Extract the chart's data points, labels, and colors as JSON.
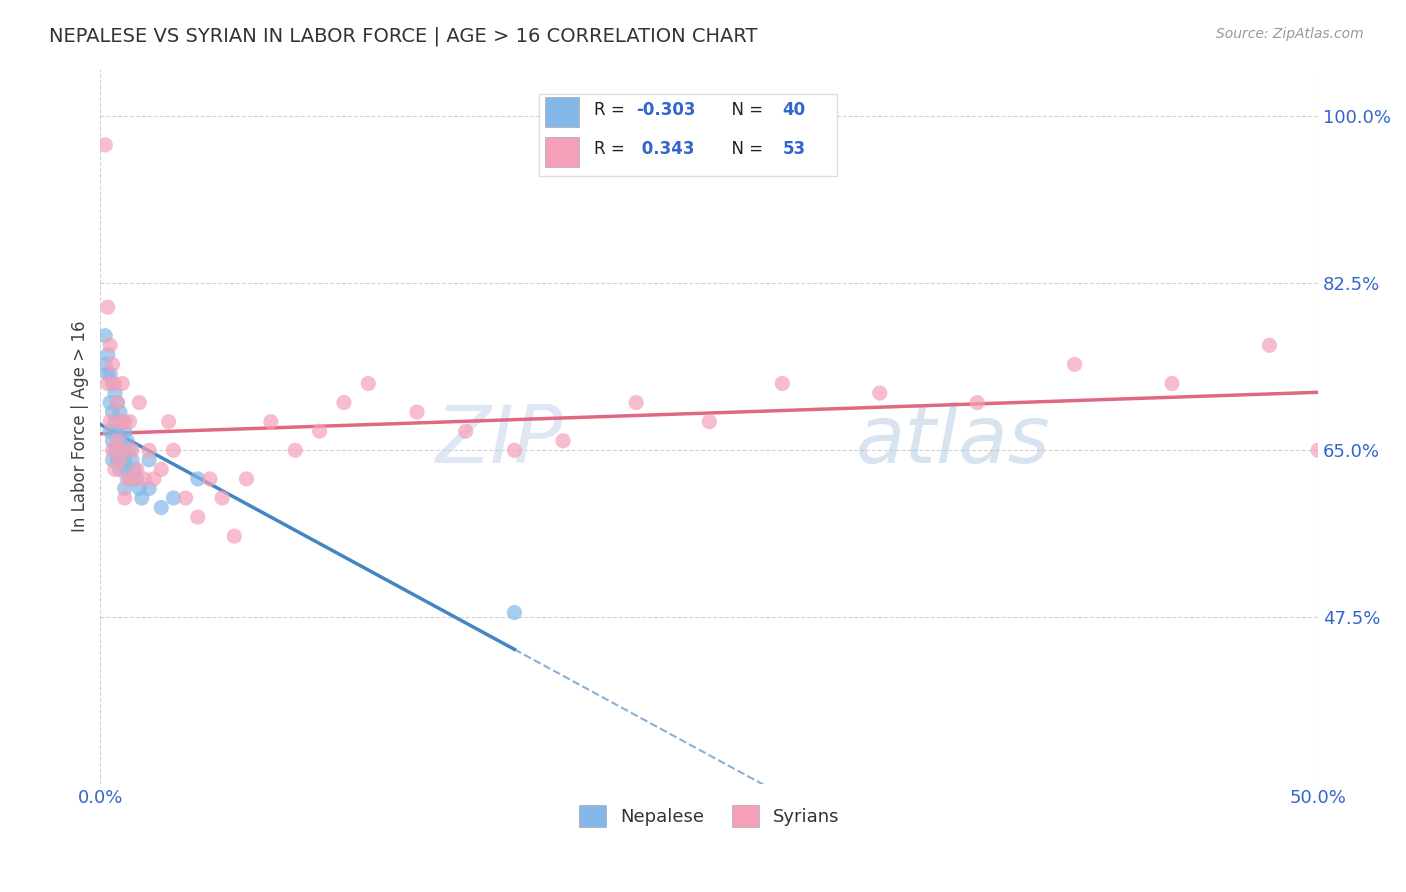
{
  "title": "NEPALESE VS SYRIAN IN LABOR FORCE | AGE > 16 CORRELATION CHART",
  "source_text": "Source: ZipAtlas.com",
  "ylabel": "In Labor Force | Age > 16",
  "xlim": [
    0.0,
    0.5
  ],
  "ylim": [
    0.3,
    1.05
  ],
  "yticks": [
    0.475,
    0.65,
    0.825,
    1.0
  ],
  "ytick_labels": [
    "47.5%",
    "65.0%",
    "82.5%",
    "100.0%"
  ],
  "xticks": [
    0.0,
    0.5
  ],
  "xtick_labels": [
    "0.0%",
    "50.0%"
  ],
  "nepalese_color": "#85b8e8",
  "syrian_color": "#f4a0b8",
  "nepalese_line_color": "#3a7ec0",
  "syrian_line_color": "#e0607a",
  "background_color": "#ffffff",
  "tick_color": "#3366cc",
  "nepalese_x": [
    0.002,
    0.002,
    0.003,
    0.003,
    0.004,
    0.004,
    0.004,
    0.005,
    0.005,
    0.005,
    0.005,
    0.006,
    0.006,
    0.006,
    0.007,
    0.007,
    0.007,
    0.008,
    0.008,
    0.008,
    0.009,
    0.009,
    0.01,
    0.01,
    0.01,
    0.011,
    0.011,
    0.012,
    0.012,
    0.013,
    0.014,
    0.015,
    0.016,
    0.017,
    0.02,
    0.02,
    0.025,
    0.03,
    0.04,
    0.17
  ],
  "nepalese_y": [
    0.77,
    0.74,
    0.75,
    0.73,
    0.73,
    0.7,
    0.67,
    0.72,
    0.69,
    0.66,
    0.64,
    0.71,
    0.68,
    0.65,
    0.7,
    0.67,
    0.64,
    0.69,
    0.66,
    0.63,
    0.68,
    0.65,
    0.67,
    0.64,
    0.61,
    0.66,
    0.63,
    0.65,
    0.62,
    0.64,
    0.63,
    0.62,
    0.61,
    0.6,
    0.64,
    0.61,
    0.59,
    0.6,
    0.62,
    0.48
  ],
  "syrian_x": [
    0.002,
    0.003,
    0.003,
    0.004,
    0.004,
    0.005,
    0.005,
    0.006,
    0.006,
    0.007,
    0.007,
    0.008,
    0.008,
    0.009,
    0.009,
    0.01,
    0.01,
    0.011,
    0.012,
    0.013,
    0.014,
    0.015,
    0.016,
    0.018,
    0.02,
    0.022,
    0.025,
    0.028,
    0.03,
    0.035,
    0.04,
    0.045,
    0.05,
    0.055,
    0.06,
    0.07,
    0.08,
    0.09,
    0.1,
    0.11,
    0.13,
    0.15,
    0.17,
    0.19,
    0.22,
    0.25,
    0.28,
    0.32,
    0.36,
    0.4,
    0.44,
    0.48,
    0.5
  ],
  "syrian_y": [
    0.97,
    0.8,
    0.72,
    0.76,
    0.68,
    0.74,
    0.65,
    0.72,
    0.63,
    0.7,
    0.66,
    0.68,
    0.64,
    0.72,
    0.65,
    0.68,
    0.6,
    0.62,
    0.68,
    0.65,
    0.62,
    0.63,
    0.7,
    0.62,
    0.65,
    0.62,
    0.63,
    0.68,
    0.65,
    0.6,
    0.58,
    0.62,
    0.6,
    0.56,
    0.62,
    0.68,
    0.65,
    0.67,
    0.7,
    0.72,
    0.69,
    0.67,
    0.65,
    0.66,
    0.7,
    0.68,
    0.72,
    0.71,
    0.7,
    0.74,
    0.72,
    0.76,
    0.65
  ]
}
